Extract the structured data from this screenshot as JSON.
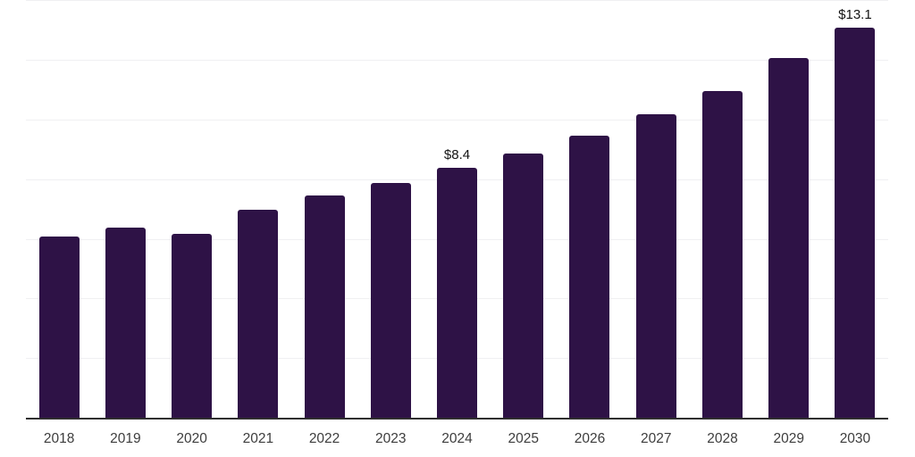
{
  "chart_data": {
    "type": "bar",
    "title": "",
    "xlabel": "",
    "ylabel": "",
    "categories": [
      "2018",
      "2019",
      "2020",
      "2021",
      "2022",
      "2023",
      "2024",
      "2025",
      "2026",
      "2027",
      "2028",
      "2029",
      "2030"
    ],
    "values": [
      6.1,
      6.4,
      6.2,
      7.0,
      7.5,
      7.9,
      8.4,
      8.9,
      9.5,
      10.2,
      11.0,
      12.1,
      13.1
    ],
    "data_labels": [
      "",
      "",
      "",
      "",
      "",
      "",
      "$8.4",
      "",
      "",
      "",
      "",
      "",
      "$13.1"
    ],
    "ylim": [
      0,
      14
    ],
    "gridline_values": [
      2,
      4,
      6,
      8,
      10,
      12,
      14
    ],
    "grid": "horizontal-only",
    "legend": "none",
    "y_tick_labels_visible": false,
    "colors": {
      "bar": "#2E1246",
      "axis_line": "#2F2F2F",
      "gridline": "#F0F0F2",
      "tick_label": "#3D3D3D",
      "value_label": "#141414",
      "background": "#FFFFFF"
    }
  }
}
